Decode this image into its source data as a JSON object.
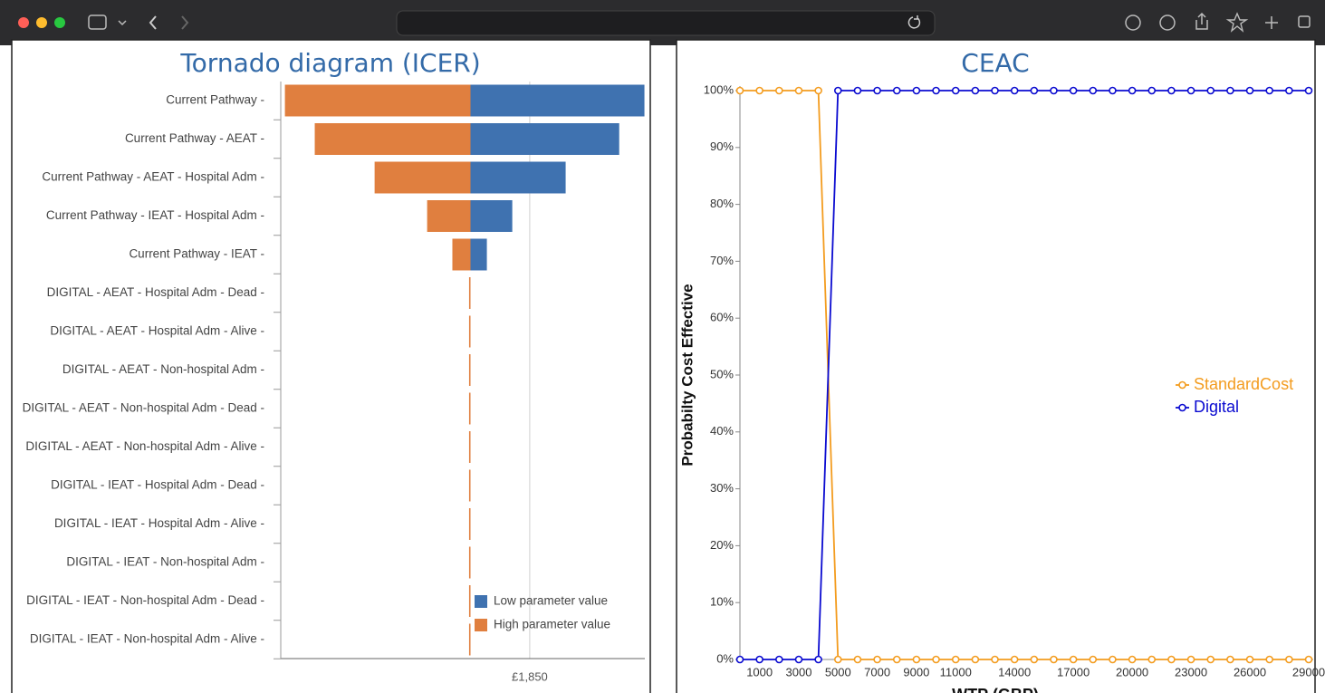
{
  "chart_data": [
    {
      "type": "tornado",
      "title": "Tornado diagram (ICER)",
      "categories": [
        "Current Pathway -",
        "Current Pathway - AEAT -",
        "Current Pathway - AEAT - Hospital Adm -",
        "Current Pathway - IEAT - Hospital Adm -",
        "Current Pathway - IEAT -",
        "DIGITAL - AEAT - Hospital Adm - Dead -",
        "DIGITAL - AEAT - Hospital Adm - Alive -",
        "DIGITAL - AEAT - Non-hospital Adm -",
        "DIGITAL - AEAT - Non-hospital Adm - Dead -",
        "DIGITAL - AEAT - Non-hospital Adm - Alive -",
        "DIGITAL - IEAT - Hospital Adm - Dead -",
        "DIGITAL - IEAT - Hospital Adm - Alive -",
        "DIGITAL - IEAT - Non-hospital Adm -",
        "DIGITAL - IEAT - Non-hospital Adm - Dead -",
        "DIGITAL - IEAT - Non-hospital Adm - Alive -"
      ],
      "base": 1500,
      "series": [
        {
          "name": "Low parameter value",
          "color": "#3f72b0",
          "values": [
            2520,
            2372,
            2058,
            1745,
            1596,
            1500,
            1500,
            1500,
            1500,
            1500,
            1500,
            1500,
            1500,
            1500,
            1500
          ]
        },
        {
          "name": "High parameter value",
          "color": "#e07f3f",
          "values": [
            417,
            592,
            943,
            1251,
            1399,
            1497,
            1497,
            1497,
            1497,
            1497,
            1497,
            1497,
            1497,
            1497,
            1497
          ]
        }
      ],
      "xlim": [
        390,
        2525
      ],
      "xticks": [
        {
          "value": 1850,
          "label": "£1,850"
        }
      ],
      "grid": true
    },
    {
      "type": "line",
      "title": "CEAC",
      "xlabel": "WTP (GBP)",
      "ylabel": "Probabilty Cost Effective",
      "x": [
        0,
        1000,
        2000,
        3000,
        4000,
        5000,
        6000,
        7000,
        8000,
        9000,
        10000,
        11000,
        12000,
        13000,
        14000,
        15000,
        16000,
        17000,
        18000,
        19000,
        20000,
        21000,
        22000,
        23000,
        24000,
        25000,
        26000,
        27000,
        28000,
        29000
      ],
      "series": [
        {
          "name": "StandardCost",
          "color": "#f39c1f",
          "values": [
            100,
            100,
            100,
            100,
            100,
            0,
            0,
            0,
            0,
            0,
            0,
            0,
            0,
            0,
            0,
            0,
            0,
            0,
            0,
            0,
            0,
            0,
            0,
            0,
            0,
            0,
            0,
            0,
            0,
            0
          ]
        },
        {
          "name": "Digital",
          "color": "#0a0ad0",
          "values": [
            0,
            0,
            0,
            0,
            0,
            100,
            100,
            100,
            100,
            100,
            100,
            100,
            100,
            100,
            100,
            100,
            100,
            100,
            100,
            100,
            100,
            100,
            100,
            100,
            100,
            100,
            100,
            100,
            100,
            100
          ]
        }
      ],
      "xlim": [
        0,
        29000
      ],
      "ylim": [
        0,
        100
      ],
      "xticks": [
        1000,
        3000,
        5000,
        7000,
        9000,
        11000,
        14000,
        17000,
        20000,
        23000,
        26000,
        29000
      ],
      "yticks": [
        {
          "value": 0,
          "label": "0%"
        },
        {
          "value": 10,
          "label": "10%"
        },
        {
          "value": 20,
          "label": "20%"
        },
        {
          "value": 30,
          "label": "30%"
        },
        {
          "value": 40,
          "label": "40%"
        },
        {
          "value": 50,
          "label": "50%"
        },
        {
          "value": 60,
          "label": "60%"
        },
        {
          "value": 70,
          "label": "70%"
        },
        {
          "value": 80,
          "label": "80%"
        },
        {
          "value": 90,
          "label": "90%"
        },
        {
          "value": 100,
          "label": "100%"
        }
      ],
      "legend": "right"
    }
  ]
}
